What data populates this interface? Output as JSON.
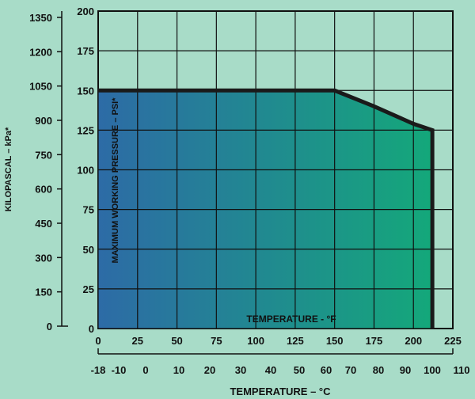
{
  "chart_data": {
    "type": "area",
    "title": "",
    "series": [
      {
        "x": [
          0,
          25,
          50,
          75,
          100,
          125,
          150,
          175,
          200,
          212
        ],
        "values": [
          150,
          150,
          150,
          150,
          150,
          150,
          150,
          140,
          129,
          125
        ]
      }
    ],
    "psi_axis": {
      "label": "MAXIMUM WORKING PRESSURE – PSI*",
      "range": [
        0,
        200
      ],
      "ticks": [
        "0",
        "25",
        "50",
        "75",
        "100",
        "125",
        "150",
        "175",
        "200"
      ]
    },
    "kpa_axis": {
      "label": "KILOPASCAL – kPa*",
      "ticks": [
        "0",
        "150",
        "300",
        "450",
        "600",
        "750",
        "900",
        "1050",
        "1200",
        "1350"
      ]
    },
    "fahrenheit_axis": {
      "label": "TEMPERATURE - °F",
      "range": [
        0,
        225
      ],
      "ticks": [
        "0",
        "25",
        "50",
        "75",
        "100",
        "125",
        "150",
        "175",
        "200",
        "225"
      ]
    },
    "celsius_axis": {
      "label": "TEMPERATURE – °C",
      "ticks": [
        "-18",
        "-10",
        "0",
        "10",
        "20",
        "30",
        "40",
        "50",
        "60",
        "70",
        "80",
        "90",
        "100",
        "110"
      ]
    },
    "grid": true,
    "colors": {
      "background": "#a8dcc8",
      "fill_start": "#2d6ba6",
      "fill_end": "#14a87a",
      "outline": "#1a1a1a"
    }
  }
}
